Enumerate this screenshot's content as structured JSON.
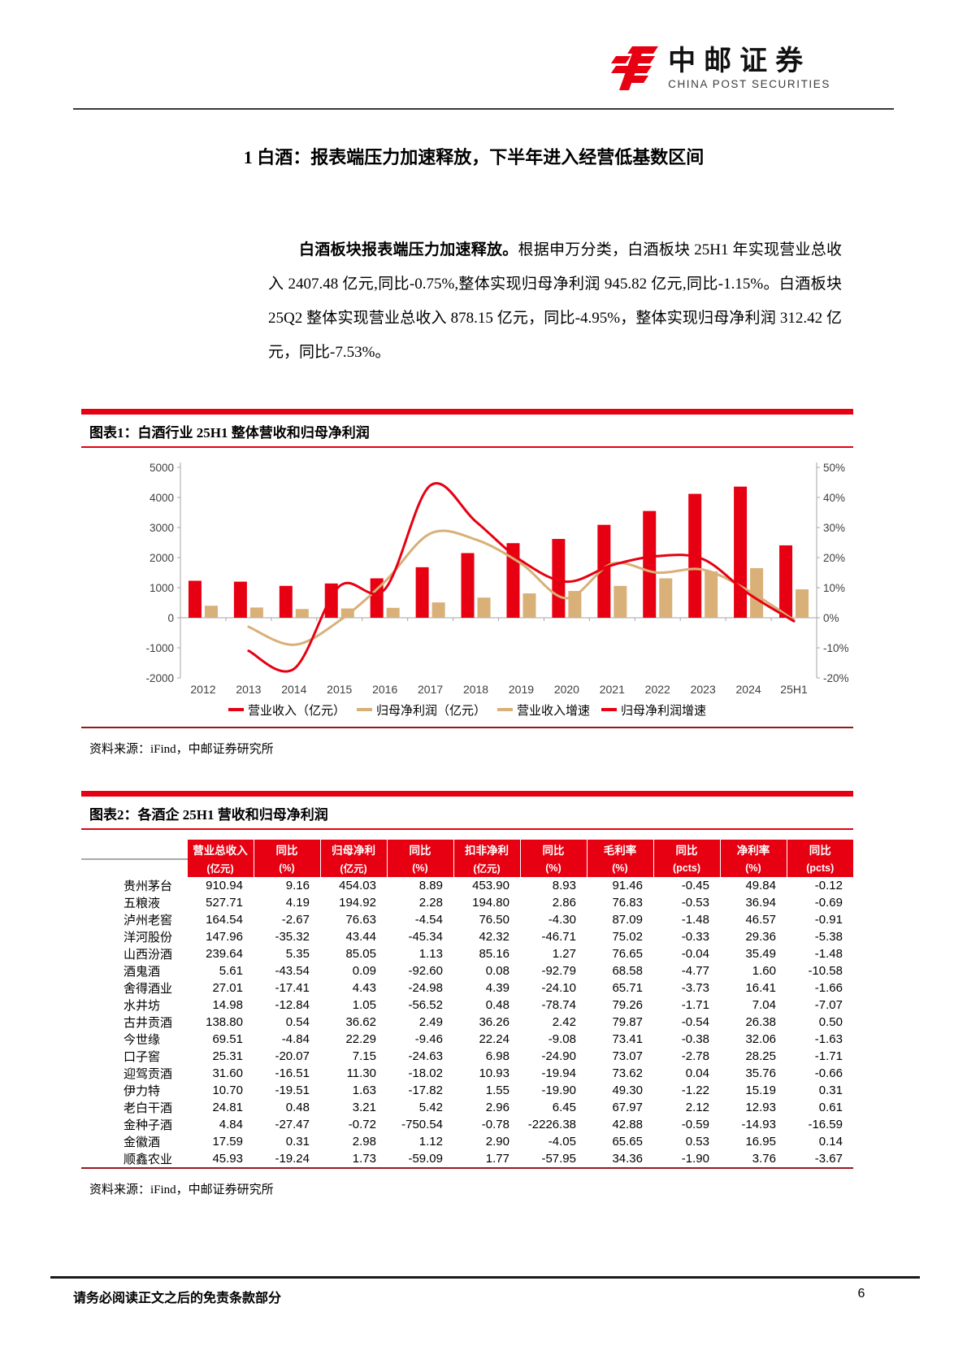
{
  "header": {
    "logo_cn": "中邮证券",
    "logo_en": "CHINA POST SECURITIES"
  },
  "section": {
    "title": "1 白酒：报表端压力加速释放，下半年进入经营低基数区间"
  },
  "paragraph": {
    "lead": "白酒板块报表端压力加速释放。",
    "body": "根据申万分类，白酒板块 25H1 年实现营业总收入 2407.48 亿元,同比-0.75%,整体实现归母净利润 945.82 亿元,同比-1.15%。白酒板块 25Q2 整体实现营业总收入 878.15 亿元，同比-4.95%，整体实现归母净利润 312.42 亿元，同比-7.53%。"
  },
  "figure1": {
    "title": "图表1：白酒行业 25H1 整体营收和归母净利润",
    "source": "资料来源：iFind，中邮证券研究所"
  },
  "figure2": {
    "title": "图表2：各酒企 25H1 营收和归母净利润",
    "source": "资料来源：iFind，中邮证券研究所"
  },
  "chart_data": {
    "type": "bar+line",
    "categories": [
      "2012",
      "2013",
      "2014",
      "2015",
      "2016",
      "2017",
      "2018",
      "2019",
      "2020",
      "2021",
      "2022",
      "2023",
      "2024",
      "25H1"
    ],
    "bar_series": [
      {
        "name": "营业收入（亿元）",
        "color": "#e60012",
        "axis": "left",
        "values": [
          1230,
          1200,
          1060,
          1140,
          1310,
          1680,
          2150,
          2480,
          2620,
          3090,
          3550,
          4120,
          4360,
          2407
        ]
      },
      {
        "name": "归母净利润（亿元）",
        "color": "#d8b078",
        "axis": "left",
        "values": [
          400,
          340,
          290,
          310,
          330,
          510,
          670,
          810,
          890,
          1060,
          1310,
          1540,
          1650,
          946
        ]
      }
    ],
    "line_series": [
      {
        "name": "营业收入增速",
        "color": "#d8b078",
        "axis": "right",
        "values": [
          null,
          -3,
          -9,
          -1,
          12,
          28,
          26,
          18,
          6.5,
          18,
          15,
          16,
          9,
          -0.75
        ]
      },
      {
        "name": "归母净利润增速",
        "color": "#e60012",
        "axis": "right",
        "values": [
          null,
          -11,
          -17,
          10.5,
          9.5,
          44,
          32,
          19,
          12,
          17.5,
          20.5,
          19.5,
          8,
          -1.15
        ]
      }
    ],
    "left_axis": {
      "min": -2000,
      "max": 5000,
      "ticks": [
        5000,
        4000,
        3000,
        2000,
        1000,
        0,
        -1000,
        -2000
      ]
    },
    "right_axis": {
      "min": -20,
      "max": 50,
      "tick_labels": [
        "50%",
        "40%",
        "30%",
        "20%",
        "10%",
        "0%",
        "-10%",
        "-20%"
      ],
      "tick_values": [
        50,
        40,
        30,
        20,
        10,
        0,
        -10,
        -20
      ]
    },
    "grid": false,
    "legend_position": "bottom",
    "legend": [
      {
        "label": "营业收入（亿元）",
        "color": "#e60012"
      },
      {
        "label": "归母净利润（亿元）",
        "color": "#d8b078"
      },
      {
        "label": "营业收入增速",
        "color": "#d8b078"
      },
      {
        "label": "归母净利润增速",
        "color": "#e60012"
      }
    ]
  },
  "table": {
    "header_row1": [
      "",
      "营业总收入",
      "同比",
      "归母净利",
      "同比",
      "扣非净利",
      "同比",
      "毛利率",
      "同比",
      "净利率",
      "同比"
    ],
    "header_row2": [
      "",
      "(亿元)",
      "(%)",
      "(亿元)",
      "(%)",
      "(亿元)",
      "(%)",
      "(%)",
      "(pcts)",
      "(%)",
      "(pcts)"
    ],
    "rows": [
      [
        "贵州茅台",
        "910.94",
        "9.16",
        "454.03",
        "8.89",
        "453.90",
        "8.93",
        "91.46",
        "-0.45",
        "49.84",
        "-0.12"
      ],
      [
        "五粮液",
        "527.71",
        "4.19",
        "194.92",
        "2.28",
        "194.80",
        "2.86",
        "76.83",
        "-0.53",
        "36.94",
        "-0.69"
      ],
      [
        "泸州老窖",
        "164.54",
        "-2.67",
        "76.63",
        "-4.54",
        "76.50",
        "-4.30",
        "87.09",
        "-1.48",
        "46.57",
        "-0.91"
      ],
      [
        "洋河股份",
        "147.96",
        "-35.32",
        "43.44",
        "-45.34",
        "42.32",
        "-46.71",
        "75.02",
        "-0.33",
        "29.36",
        "-5.38"
      ],
      [
        "山西汾酒",
        "239.64",
        "5.35",
        "85.05",
        "1.13",
        "85.16",
        "1.27",
        "76.65",
        "-0.04",
        "35.49",
        "-1.48"
      ],
      [
        "酒鬼酒",
        "5.61",
        "-43.54",
        "0.09",
        "-92.60",
        "0.08",
        "-92.79",
        "68.58",
        "-4.77",
        "1.60",
        "-10.58"
      ],
      [
        "舍得酒业",
        "27.01",
        "-17.41",
        "4.43",
        "-24.98",
        "4.39",
        "-24.10",
        "65.71",
        "-3.73",
        "16.41",
        "-1.66"
      ],
      [
        "水井坊",
        "14.98",
        "-12.84",
        "1.05",
        "-56.52",
        "0.48",
        "-78.74",
        "79.26",
        "-1.71",
        "7.04",
        "-7.07"
      ],
      [
        "古井贡酒",
        "138.80",
        "0.54",
        "36.62",
        "2.49",
        "36.26",
        "2.42",
        "79.87",
        "-0.54",
        "26.38",
        "0.50"
      ],
      [
        "今世缘",
        "69.51",
        "-4.84",
        "22.29",
        "-9.46",
        "22.24",
        "-9.08",
        "73.41",
        "-0.38",
        "32.06",
        "-1.63"
      ],
      [
        "口子窖",
        "25.31",
        "-20.07",
        "7.15",
        "-24.63",
        "6.98",
        "-24.90",
        "73.07",
        "-2.78",
        "28.25",
        "-1.71"
      ],
      [
        "迎驾贡酒",
        "31.60",
        "-16.51",
        "11.30",
        "-18.02",
        "10.93",
        "-19.94",
        "73.62",
        "0.04",
        "35.76",
        "-0.66"
      ],
      [
        "伊力特",
        "10.70",
        "-19.51",
        "1.63",
        "-17.82",
        "1.55",
        "-19.90",
        "49.30",
        "-1.22",
        "15.19",
        "0.31"
      ],
      [
        "老白干酒",
        "24.81",
        "0.48",
        "3.21",
        "5.42",
        "2.96",
        "6.45",
        "67.97",
        "2.12",
        "12.93",
        "0.61"
      ],
      [
        "金种子酒",
        "4.84",
        "-27.47",
        "-0.72",
        "-750.54",
        "-0.78",
        "-2226.38",
        "42.88",
        "-0.59",
        "-14.93",
        "-16.59"
      ],
      [
        "金徽酒",
        "17.59",
        "0.31",
        "2.98",
        "1.12",
        "2.90",
        "-4.05",
        "65.65",
        "0.53",
        "16.95",
        "0.14"
      ],
      [
        "顺鑫农业",
        "45.93",
        "-19.24",
        "1.73",
        "-59.09",
        "1.77",
        "-57.95",
        "34.36",
        "-1.90",
        "3.76",
        "-3.67"
      ]
    ]
  },
  "footer": {
    "note": "请务必阅读正文之后的免责条款部分",
    "page_number": "6"
  },
  "colors": {
    "brand_red": "#e60012",
    "tan": "#d8b078",
    "dark_red": "#97181d"
  }
}
